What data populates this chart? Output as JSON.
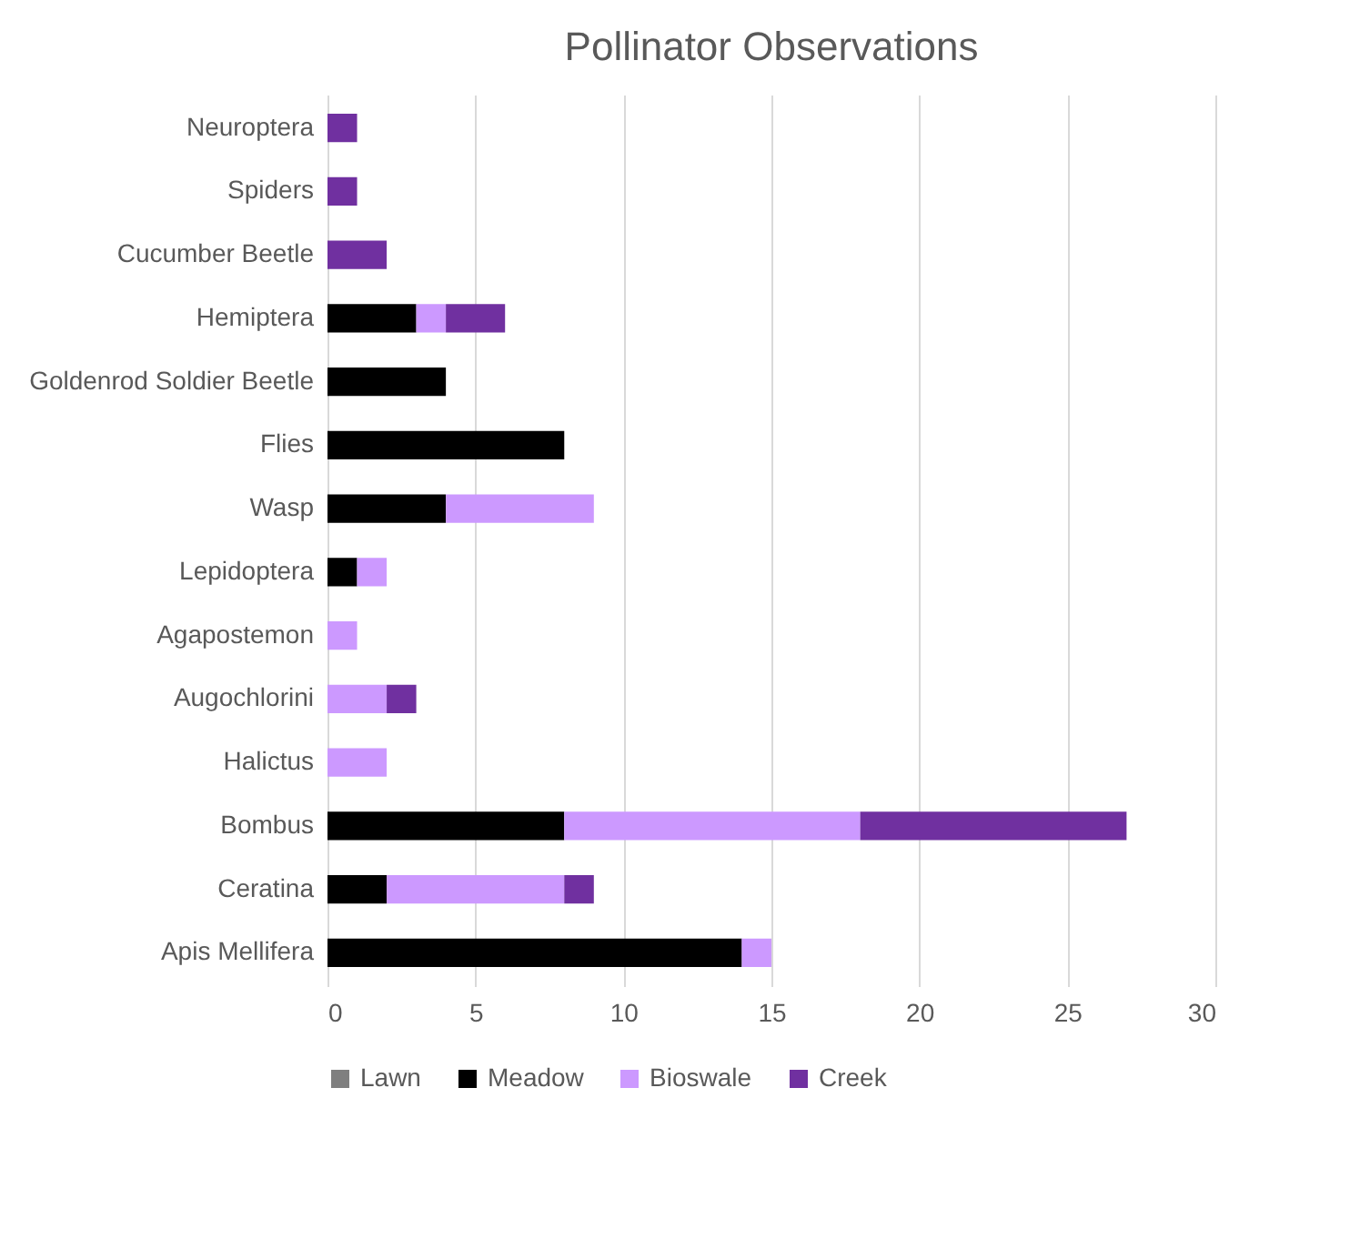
{
  "chart_data": {
    "type": "bar",
    "orientation": "horizontal",
    "stacked": true,
    "title": "Pollinator Observations",
    "categories": [
      "Neuroptera",
      "Spiders",
      "Cucumber Beetle",
      "Hemiptera",
      "Goldenrod Soldier Beetle",
      "Flies",
      "Wasp",
      "Lepidoptera",
      "Agapostemon",
      "Augochlorini",
      "Halictus",
      "Bombus",
      "Ceratina",
      "Apis Mellifera"
    ],
    "series": [
      {
        "name": "Lawn",
        "color": "#7f7f7f",
        "values": [
          0,
          0,
          0,
          0,
          0,
          0,
          0,
          0,
          0,
          0,
          0,
          0,
          0,
          0
        ]
      },
      {
        "name": "Meadow",
        "color": "#000000",
        "values": [
          0,
          0,
          0,
          3,
          4,
          8,
          4,
          1,
          0,
          0,
          0,
          8,
          2,
          14
        ]
      },
      {
        "name": "Bioswale",
        "color": "#cc99ff",
        "values": [
          0,
          0,
          0,
          1,
          0,
          0,
          5,
          1,
          1,
          2,
          2,
          10,
          6,
          1
        ]
      },
      {
        "name": "Creek",
        "color": "#7030a0",
        "values": [
          1,
          1,
          2,
          2,
          0,
          0,
          0,
          0,
          0,
          1,
          0,
          9,
          1,
          0
        ]
      }
    ],
    "xlim": [
      0,
      30
    ],
    "xticks": [
      0,
      5,
      10,
      15,
      20,
      25,
      30
    ],
    "grid": "x",
    "legend": "bottom"
  }
}
